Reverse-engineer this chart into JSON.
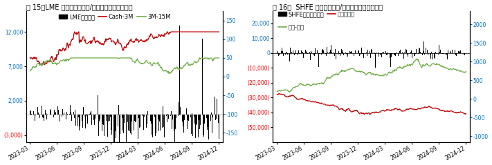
{
  "fig_title_left": "图 15：LME 基差价差（美元/吨）与库存变动（吨）",
  "fig_title_right": "图 16：  SHFE 基差价差（元/吨）与库存变动（吨）",
  "left": {
    "left_ytick_vals": [
      -3000,
      2000,
      7000,
      12000
    ],
    "right_ytick_vals": [
      -150,
      -100,
      -50,
      0,
      50,
      100,
      150
    ],
    "left_ylim": [
      -4000,
      15000
    ],
    "right_ylim": [
      -175,
      175
    ],
    "legend_items": [
      "LME库存增减",
      "Cash-3M",
      "3M-15M"
    ],
    "legend_colors": [
      "#000000",
      "#c00000",
      "#70ad47"
    ],
    "bar_color": "#000000",
    "line1_color": "#c00000",
    "line2_color": "#70ad47",
    "left_label_color": "#0070c0",
    "right_label_color": "#0070c0",
    "neg_label_color": "#ff0000"
  },
  "right": {
    "left_ytick_vals": [
      -50000,
      -40000,
      -30000,
      -20000,
      -10000,
      0,
      10000,
      20000
    ],
    "right_ytick_vals": [
      -1000,
      -500,
      0,
      500,
      1000,
      1500,
      2000
    ],
    "left_ylim": [
      -60000,
      28000
    ],
    "right_ylim": [
      -1150,
      2350
    ],
    "legend_items": [
      "SHFE期货库存增减",
      "现货升贴水",
      "连续-连三"
    ],
    "legend_colors": [
      "#000000",
      "#c00000",
      "#70ad47"
    ],
    "bar_color": "#000000",
    "line1_color": "#c00000",
    "line2_color": "#70ad47",
    "left_label_color": "#0070c0",
    "right_label_color": "#0070c0",
    "neg_label_color": "#ff0000"
  },
  "xtick_labels": [
    "2023-03",
    "2023-06",
    "2023-09",
    "2023-12",
    "2024-03",
    "2024-06",
    "2024-09",
    "2024-12"
  ],
  "background_color": "#ffffff",
  "title_fontsize": 7.0,
  "legend_fontsize": 6.0,
  "tick_fontsize": 5.5,
  "axis_label_color": "#0070c0"
}
